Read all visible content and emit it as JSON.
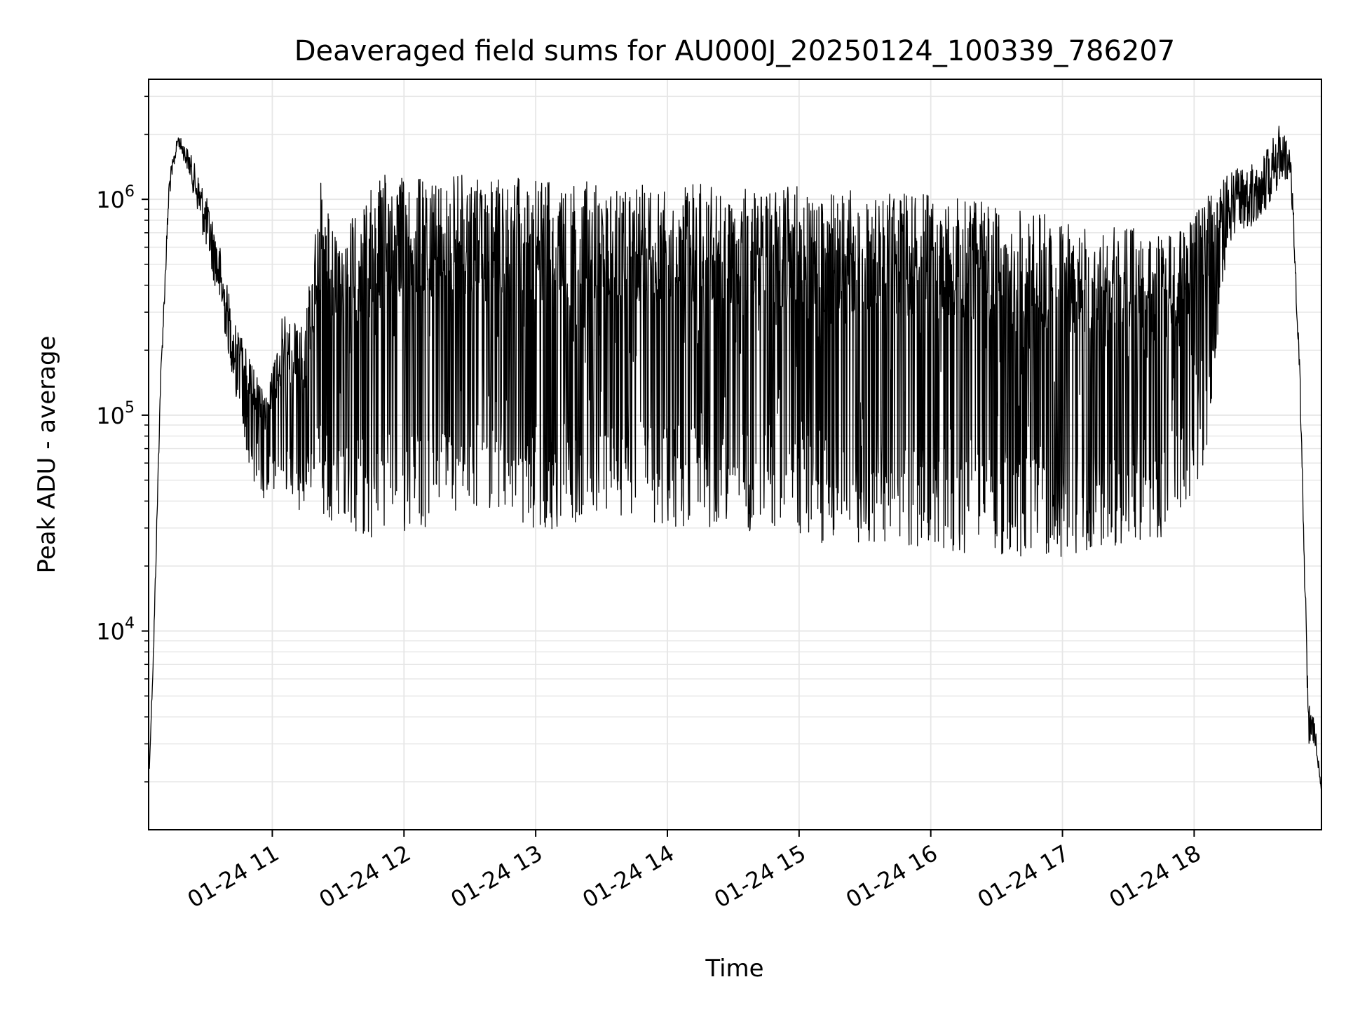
{
  "chart_data": {
    "type": "line",
    "title": "Deaveraged field sums for AU000J_20250124_100339_786207",
    "xlabel": "Time",
    "ylabel": "Peak ADU - average",
    "yscale": "log",
    "ylim": [
      1200,
      3600000
    ],
    "xlim": [
      "2025-01-24T10:03:39",
      "2025-01-24T18:58:00"
    ],
    "grid": true,
    "line_color": "#000000",
    "grid_color": "#e6e6e6",
    "x_ticks": [
      {
        "label": "01-24 11",
        "t": "2025-01-24T11:00:00"
      },
      {
        "label": "01-24 12",
        "t": "2025-01-24T12:00:00"
      },
      {
        "label": "01-24 13",
        "t": "2025-01-24T13:00:00"
      },
      {
        "label": "01-24 14",
        "t": "2025-01-24T14:00:00"
      },
      {
        "label": "01-24 15",
        "t": "2025-01-24T15:00:00"
      },
      {
        "label": "01-24 16",
        "t": "2025-01-24T16:00:00"
      },
      {
        "label": "01-24 17",
        "t": "2025-01-24T17:00:00"
      },
      {
        "label": "01-24 18",
        "t": "2025-01-24T18:00:00"
      }
    ],
    "y_ticks": [
      {
        "value": 10000,
        "base": "10",
        "exp": "4"
      },
      {
        "value": 100000,
        "base": "10",
        "exp": "5"
      },
      {
        "value": 1000000,
        "base": "10",
        "exp": "6"
      }
    ],
    "envelope": [
      {
        "t": "2025-01-24T10:04:00",
        "upper": 2300,
        "lower": 2300
      },
      {
        "t": "2025-01-24T10:06:00",
        "upper": 10000,
        "lower": 8000
      },
      {
        "t": "2025-01-24T10:09:00",
        "upper": 150000,
        "lower": 120000
      },
      {
        "t": "2025-01-24T10:13:00",
        "upper": 1300000,
        "lower": 1000000
      },
      {
        "t": "2025-01-24T10:17:00",
        "upper": 2000000,
        "lower": 1800000
      },
      {
        "t": "2025-01-24T10:22:00",
        "upper": 1700000,
        "lower": 1300000
      },
      {
        "t": "2025-01-24T10:28:00",
        "upper": 1200000,
        "lower": 700000
      },
      {
        "t": "2025-01-24T10:35:00",
        "upper": 700000,
        "lower": 350000
      },
      {
        "t": "2025-01-24T10:42:00",
        "upper": 300000,
        "lower": 150000
      },
      {
        "t": "2025-01-24T10:50:00",
        "upper": 180000,
        "lower": 50000
      },
      {
        "t": "2025-01-24T10:57:00",
        "upper": 120000,
        "lower": 40000
      },
      {
        "t": "2025-01-24T11:05:00",
        "upper": 300000,
        "lower": 40000
      },
      {
        "t": "2025-01-24T11:15:00",
        "upper": 300000,
        "lower": 35000
      },
      {
        "t": "2025-01-24T11:22:00",
        "upper": 1200000,
        "lower": 35000
      },
      {
        "t": "2025-01-24T11:30:00",
        "upper": 600000,
        "lower": 30000
      },
      {
        "t": "2025-01-24T11:40:00",
        "upper": 1000000,
        "lower": 27000
      },
      {
        "t": "2025-01-24T11:50:00",
        "upper": 1300000,
        "lower": 27000
      },
      {
        "t": "2025-01-24T12:10:00",
        "upper": 1300000,
        "lower": 30000
      },
      {
        "t": "2025-01-24T12:40:00",
        "upper": 1300000,
        "lower": 35000
      },
      {
        "t": "2025-01-24T13:00:00",
        "upper": 1250000,
        "lower": 28000
      },
      {
        "t": "2025-01-24T13:30:00",
        "upper": 1200000,
        "lower": 35000
      },
      {
        "t": "2025-01-24T14:00:00",
        "upper": 1200000,
        "lower": 30000
      },
      {
        "t": "2025-01-24T14:30:00",
        "upper": 1150000,
        "lower": 30000
      },
      {
        "t": "2025-01-24T15:00:00",
        "upper": 1150000,
        "lower": 26000
      },
      {
        "t": "2025-01-24T15:30:00",
        "upper": 1100000,
        "lower": 25000
      },
      {
        "t": "2025-01-24T16:00:00",
        "upper": 1050000,
        "lower": 24000
      },
      {
        "t": "2025-01-24T16:30:00",
        "upper": 950000,
        "lower": 22000
      },
      {
        "t": "2025-01-24T17:00:00",
        "upper": 850000,
        "lower": 22000
      },
      {
        "t": "2025-01-24T17:30:00",
        "upper": 750000,
        "lower": 25000
      },
      {
        "t": "2025-01-24T17:50:00",
        "upper": 700000,
        "lower": 28000
      },
      {
        "t": "2025-01-24T18:05:00",
        "upper": 1000000,
        "lower": 60000
      },
      {
        "t": "2025-01-24T18:15:00",
        "upper": 1300000,
        "lower": 600000
      },
      {
        "t": "2025-01-24T18:30:00",
        "upper": 1600000,
        "lower": 800000
      },
      {
        "t": "2025-01-24T18:40:00",
        "upper": 2300000,
        "lower": 1200000
      },
      {
        "t": "2025-01-24T18:44:00",
        "upper": 1800000,
        "lower": 1200000
      },
      {
        "t": "2025-01-24T18:48:00",
        "upper": 200000,
        "lower": 150000
      },
      {
        "t": "2025-01-24T18:52:00",
        "upper": 5000,
        "lower": 3000
      },
      {
        "t": "2025-01-24T18:55:00",
        "upper": 3800,
        "lower": 3000
      },
      {
        "t": "2025-01-24T18:58:00",
        "upper": 1800,
        "lower": 1800
      }
    ]
  }
}
